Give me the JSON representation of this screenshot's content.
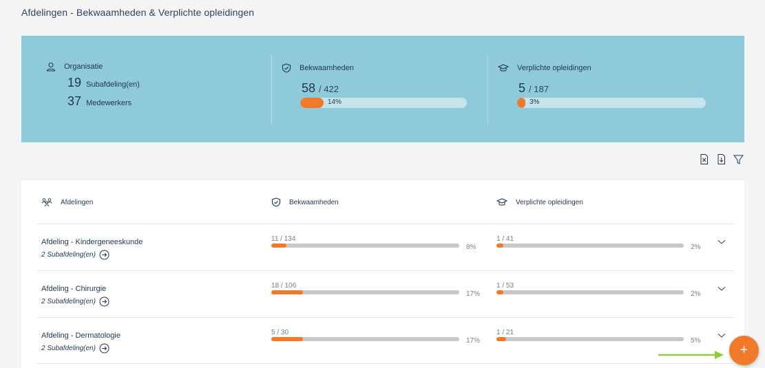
{
  "page": {
    "title": "Afdelingen - Bekwaamheden & Verplichte opleidingen"
  },
  "summary": {
    "organisation": {
      "label": "Organisatie",
      "icon": "user-icon",
      "subdepartments_count": "19",
      "subdepartments_label": "Subafdeling(en)",
      "employees_count": "37",
      "employees_label": "Medewerkers"
    },
    "competencies": {
      "label": "Bekwaamheden",
      "icon": "shield-check-icon",
      "done": "58",
      "total": "/ 422",
      "percent_label": "14%",
      "percent": 14
    },
    "trainings": {
      "label": "Verplichte opleidingen",
      "icon": "graduation-cap-icon",
      "done": "5",
      "total": "/ 187",
      "percent_label": "3%",
      "percent": 3
    }
  },
  "toolbar": {
    "icons": [
      "excel-export-icon",
      "download-icon",
      "filter-icon"
    ]
  },
  "table": {
    "headers": {
      "departments": "Afdelingen",
      "competencies": "Bekwaamheden",
      "trainings": "Verplichte opleidingen"
    },
    "rows": [
      {
        "name": "Afdeling - Kindergeneeskunde",
        "sub": "2 Subafdeling(en)",
        "comp_label": "11 / 134",
        "comp_pct_label": "8%",
        "comp_pct": 8,
        "train_label": "1 / 41",
        "train_pct_label": "2%",
        "train_pct": 2
      },
      {
        "name": "Afdeling - Chirurgie",
        "sub": "2 Subafdeling(en)",
        "comp_label": "18 / 106",
        "comp_pct_label": "17%",
        "comp_pct": 17,
        "train_label": "1 / 53",
        "train_pct_label": "2%",
        "train_pct": 2
      },
      {
        "name": "Afdeling - Dermatologie",
        "sub": "2 Subafdeling(en)",
        "comp_label": "5 / 30",
        "comp_pct_label": "17%",
        "comp_pct": 17,
        "train_label": "1 / 21",
        "train_pct_label": "5%",
        "train_pct": 5
      }
    ]
  },
  "fab": {
    "label": "+"
  },
  "colors": {
    "accent": "#f07a2a",
    "summary_bg": "#8ecad9",
    "arrow": "#8ccf3a"
  }
}
